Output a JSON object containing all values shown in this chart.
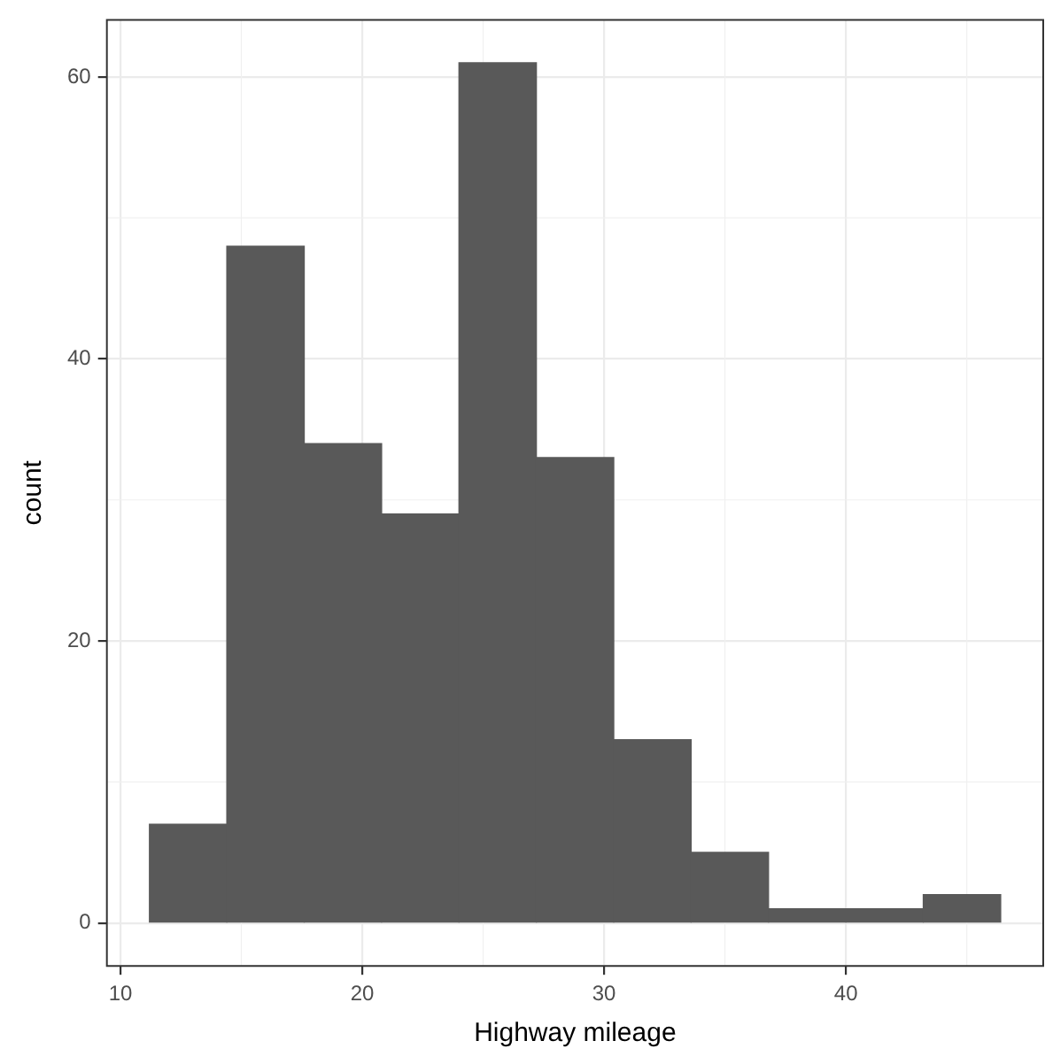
{
  "chart_data": {
    "type": "histogram",
    "xlabel": "Highway mileage",
    "ylabel": "count",
    "bins": [
      11.2,
      14.4,
      17.6,
      20.8,
      24,
      27.2,
      30.4,
      33.6,
      36.8,
      40,
      43.2,
      46.4
    ],
    "values": [
      7,
      48,
      34,
      29,
      61,
      33,
      13,
      5,
      1,
      1,
      2
    ],
    "color": "#595959",
    "xlim": [
      9.44,
      48.16
    ],
    "xticks": [
      10,
      20,
      30,
      40
    ],
    "ylim": [
      -3.05,
      64.05
    ],
    "yticks": [
      0,
      20,
      40,
      60
    ],
    "grid": true,
    "legend": false
  }
}
